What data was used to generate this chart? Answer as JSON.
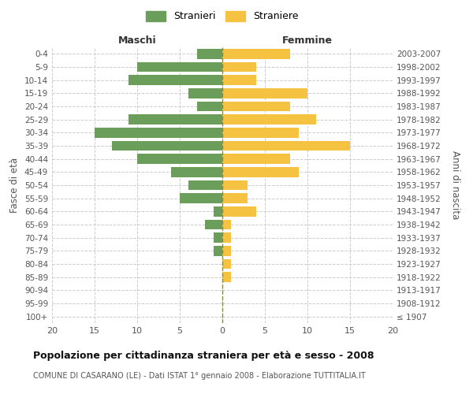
{
  "age_groups": [
    "100+",
    "95-99",
    "90-94",
    "85-89",
    "80-84",
    "75-79",
    "70-74",
    "65-69",
    "60-64",
    "55-59",
    "50-54",
    "45-49",
    "40-44",
    "35-39",
    "30-34",
    "25-29",
    "20-24",
    "15-19",
    "10-14",
    "5-9",
    "0-4"
  ],
  "birth_years": [
    "≤ 1907",
    "1908-1912",
    "1913-1917",
    "1918-1922",
    "1923-1927",
    "1928-1932",
    "1933-1937",
    "1938-1942",
    "1943-1947",
    "1948-1952",
    "1953-1957",
    "1958-1962",
    "1963-1967",
    "1968-1972",
    "1973-1977",
    "1978-1982",
    "1983-1987",
    "1988-1992",
    "1993-1997",
    "1998-2002",
    "2003-2007"
  ],
  "maschi": [
    0,
    0,
    0,
    0,
    0,
    1,
    1,
    2,
    1,
    5,
    4,
    6,
    10,
    13,
    15,
    11,
    3,
    4,
    11,
    10,
    3
  ],
  "femmine": [
    0,
    0,
    0,
    1,
    1,
    1,
    1,
    1,
    4,
    3,
    3,
    9,
    8,
    15,
    9,
    11,
    8,
    10,
    4,
    4,
    8
  ],
  "color_maschi": "#6a9e5a",
  "color_femmine": "#f5c242",
  "title": "Popolazione per cittadinanza straniera per età e sesso - 2008",
  "subtitle": "COMUNE DI CASARANO (LE) - Dati ISTAT 1° gennaio 2008 - Elaborazione TUTTITALIA.IT",
  "ylabel_left": "Fasce di età",
  "ylabel_right": "Anni di nascita",
  "header_maschi": "Maschi",
  "header_femmine": "Femmine",
  "legend_stranieri": "Stranieri",
  "legend_straniere": "Straniere",
  "xlim": 20,
  "background_color": "#ffffff",
  "grid_color": "#cccccc"
}
